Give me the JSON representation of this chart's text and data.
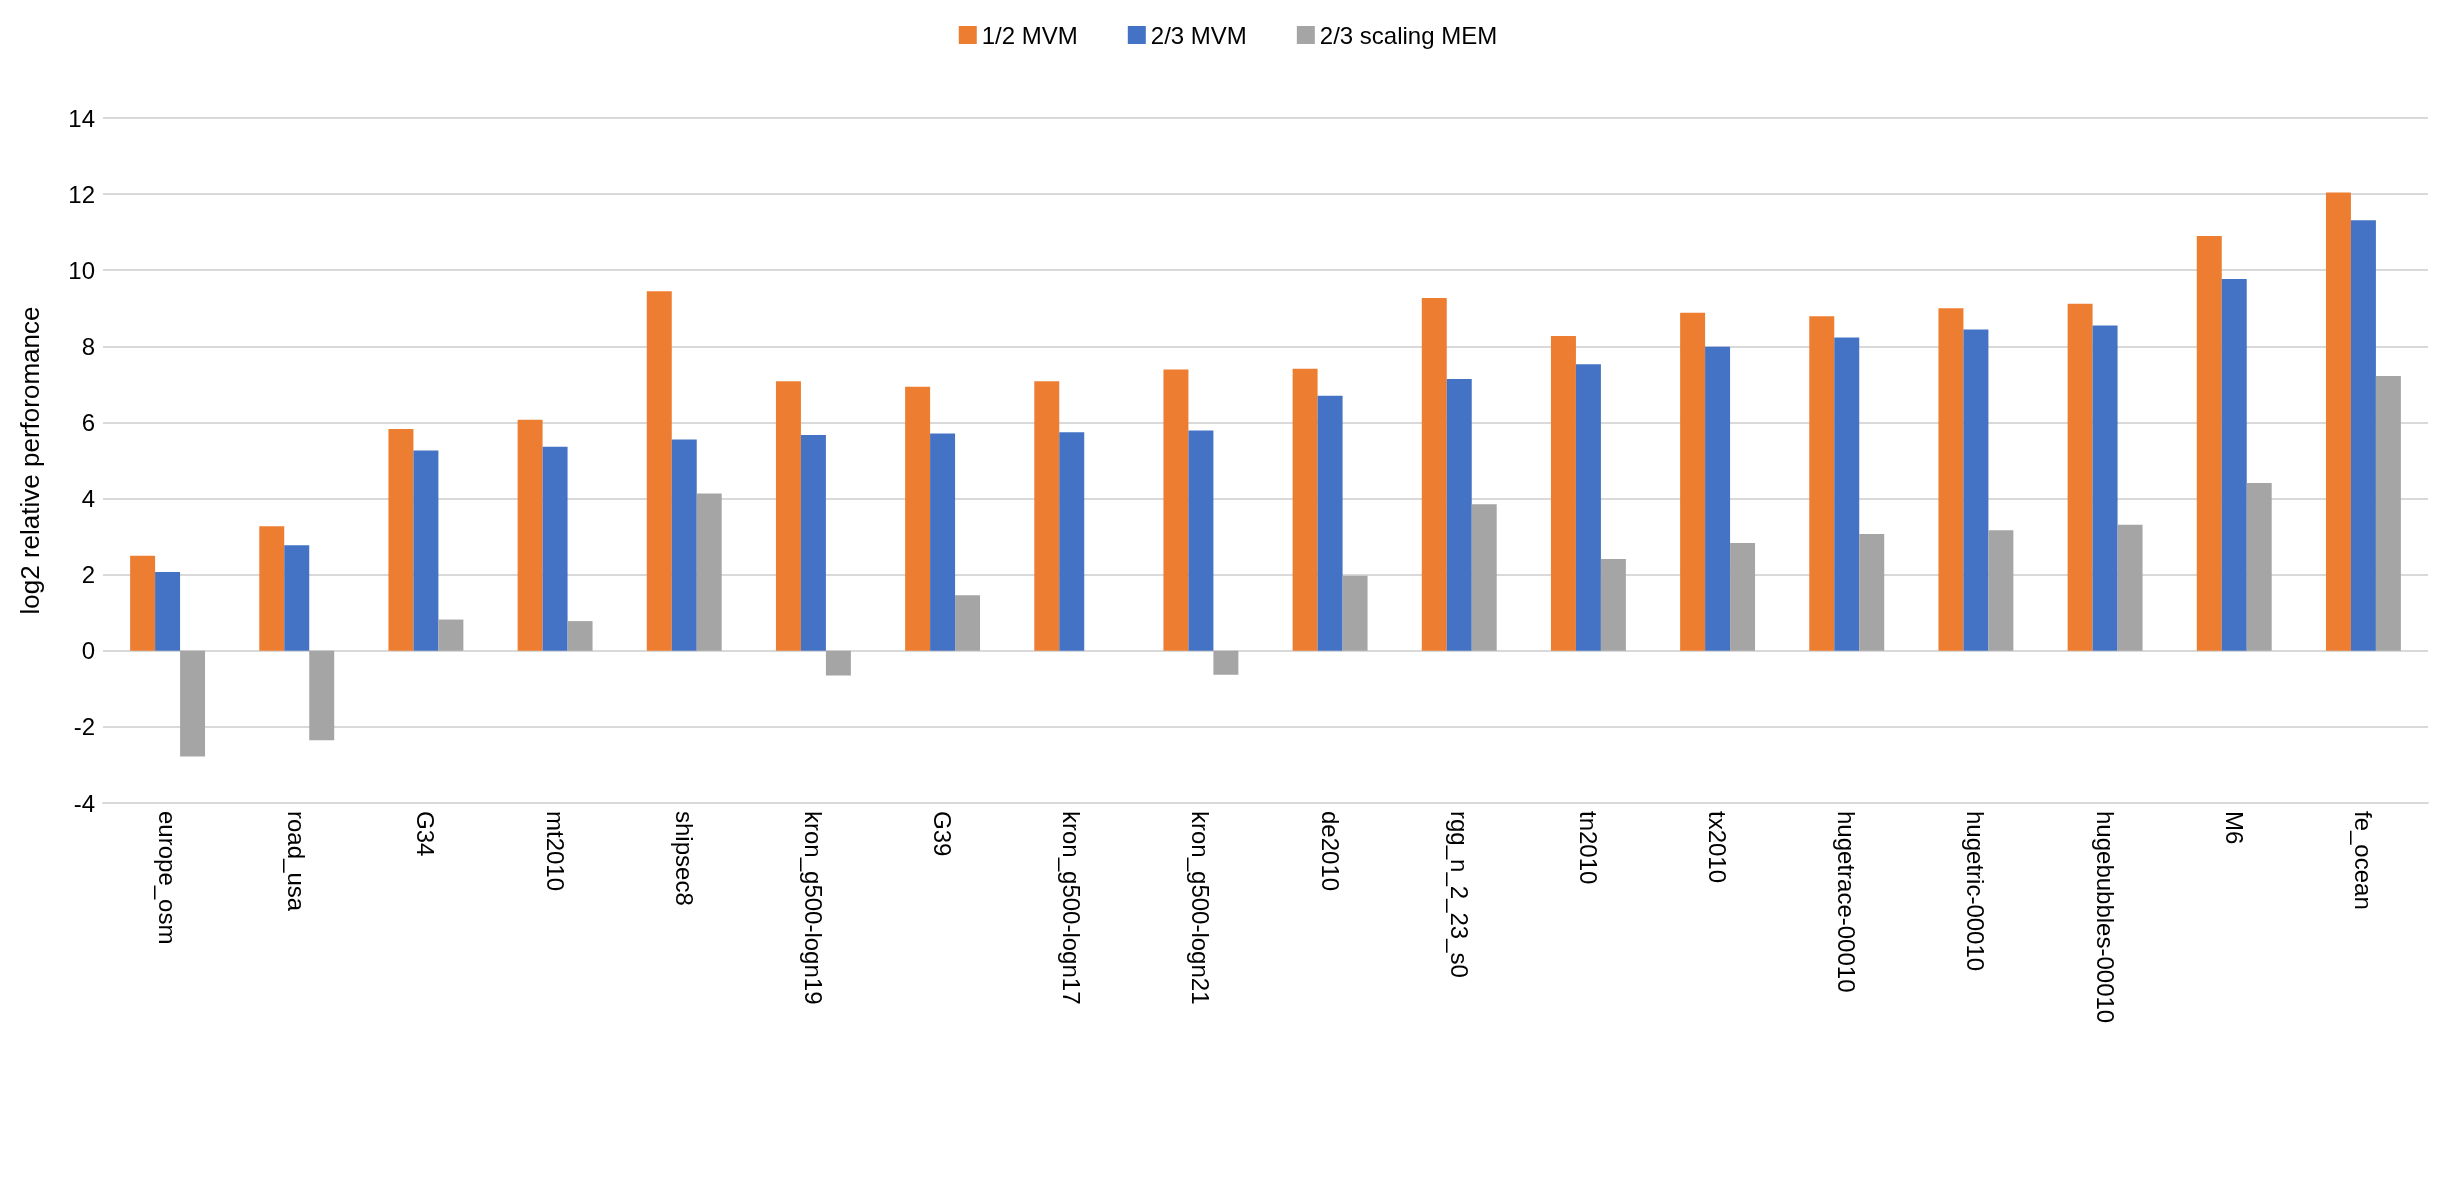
{
  "chart_data": {
    "type": "bar",
    "ylabel": "log2 relative perforomance",
    "categories": [
      "europe_osm",
      "road_usa",
      "G34",
      "mt2010",
      "shipsec8",
      "kron_g500-logn19",
      "G39",
      "kron_g500-logn17",
      "kron_g500-logn21",
      "de2010",
      "rgg_n_2_23_s0",
      "tn2010",
      "tx2010",
      "hugetrace-00010",
      "hugetric-00010",
      "hugebubbles-00010",
      "M6",
      "fe_ocean"
    ],
    "series": [
      {
        "name": "1/2 MVM",
        "color": "#ed7d31",
        "values": [
          2.5,
          3.27,
          5.83,
          6.07,
          9.45,
          7.08,
          6.94,
          7.08,
          7.39,
          7.41,
          9.27,
          8.27,
          8.88,
          8.79,
          9.0,
          9.12,
          10.9,
          12.04
        ]
      },
      {
        "name": "2/3 MVM",
        "color": "#4472c4",
        "values": [
          2.07,
          2.77,
          5.26,
          5.36,
          5.55,
          5.67,
          5.71,
          5.74,
          5.79,
          6.7,
          7.14,
          7.53,
          7.99,
          8.23,
          8.44,
          8.55,
          9.77,
          11.31
        ]
      },
      {
        "name": "2/3 scaling MEM",
        "color": "#a5a5a5",
        "values": [
          -2.78,
          -2.35,
          0.82,
          0.78,
          4.13,
          -0.65,
          1.46,
          null,
          -0.63,
          1.97,
          3.85,
          2.41,
          2.83,
          3.07,
          3.17,
          3.31,
          4.41,
          7.22
        ]
      }
    ],
    "ylim": [
      -4,
      14
    ],
    "yticks": [
      -4,
      -2,
      0,
      2,
      4,
      6,
      8,
      10,
      12,
      14
    ],
    "grid": "y",
    "legend": "top"
  }
}
